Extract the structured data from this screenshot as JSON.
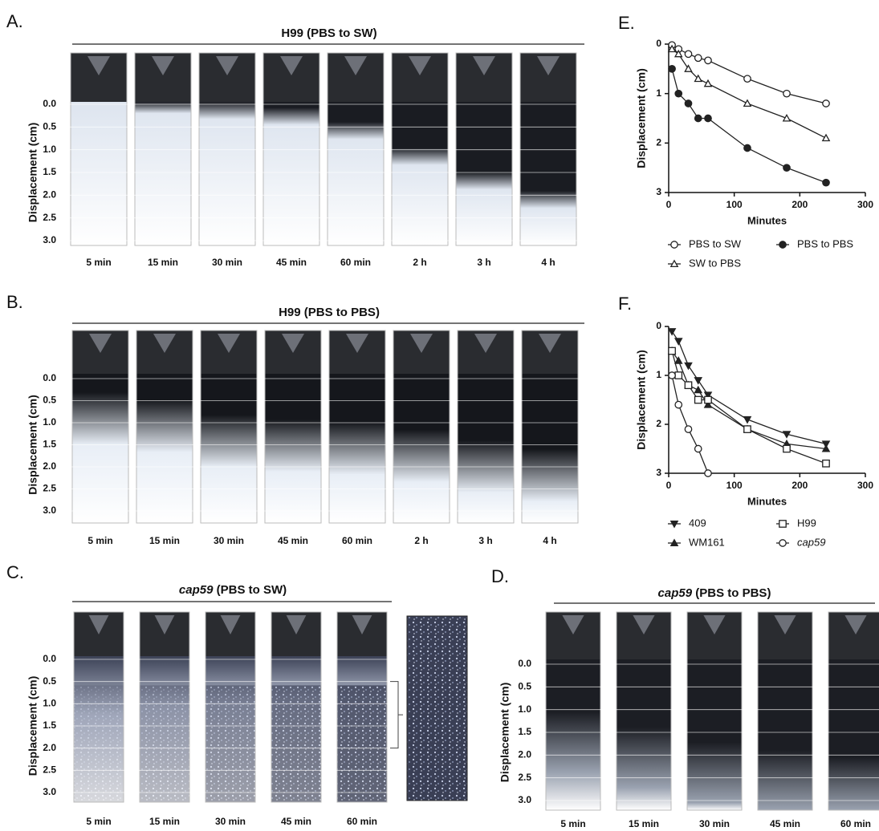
{
  "panels": [
    {
      "label": "A.",
      "strain": "H99",
      "condition": "(PBS to SW)",
      "strain_italic": false,
      "y_label": "Displacement (cm)",
      "ticks": [
        "0.0",
        "0.5",
        "1.0",
        "1.5",
        "2.0",
        "2.5",
        "3.0"
      ],
      "times": [
        "5 min",
        "15 min",
        "30 min",
        "45 min",
        "60 min",
        "2 h",
        "3 h",
        "4 h"
      ]
    },
    {
      "label": "B.",
      "strain": "H99",
      "condition": "(PBS to PBS)",
      "strain_italic": false,
      "y_label": "Displacement (cm)",
      "ticks": [
        "0.0",
        "0.5",
        "1.0",
        "1.5",
        "2.0",
        "2.5",
        "3.0"
      ],
      "times": [
        "5 min",
        "15 min",
        "30 min",
        "45 min",
        "60 min",
        "2 h",
        "3 h",
        "4 h"
      ]
    },
    {
      "label": "C.",
      "strain": "cap59",
      "condition": "(PBS to SW)",
      "strain_italic": true,
      "y_label": "Displacement (cm)",
      "ticks": [
        "0.0",
        "0.5",
        "1.0",
        "1.5",
        "2.0",
        "2.5",
        "3.0"
      ],
      "times": [
        "5 min",
        "15 min",
        "30 min",
        "45 min",
        "60 min"
      ]
    },
    {
      "label": "D.",
      "strain": "cap59",
      "condition": "(PBS to PBS)",
      "strain_italic": true,
      "y_label": "Displacement (cm)",
      "ticks": [
        "0.0",
        "0.5",
        "1.0",
        "1.5",
        "2.0",
        "2.5",
        "3.0"
      ],
      "times": [
        "5 min",
        "15 min",
        "30 min",
        "45 min",
        "60 min"
      ]
    }
  ],
  "chart_data": [
    {
      "type": "line",
      "label": "E.",
      "x_label": "Minutes",
      "y_label": "Displacement (cm)",
      "xlim": [
        0,
        300
      ],
      "xticks": [
        0,
        100,
        200,
        300
      ],
      "ylim": [
        0,
        3
      ],
      "yticks": [
        0,
        1,
        2,
        3
      ],
      "y_inverted": true,
      "series": [
        {
          "name": "PBS to SW",
          "marker": "circle-open",
          "color": "#222222",
          "x": [
            5,
            15,
            30,
            45,
            60,
            120,
            180,
            240
          ],
          "values": [
            0.02,
            0.1,
            0.2,
            0.28,
            0.33,
            0.7,
            1.0,
            1.2
          ]
        },
        {
          "name": "SW to PBS",
          "marker": "triangle-open",
          "color": "#222222",
          "x": [
            5,
            15,
            30,
            45,
            60,
            120,
            180,
            240
          ],
          "values": [
            0.1,
            0.2,
            0.5,
            0.7,
            0.8,
            1.2,
            1.5,
            1.9
          ]
        },
        {
          "name": "PBS to PBS",
          "marker": "circle-filled",
          "color": "#222222",
          "x": [
            5,
            15,
            30,
            45,
            60,
            120,
            180,
            240
          ],
          "values": [
            0.5,
            1.0,
            1.2,
            1.5,
            1.5,
            2.1,
            2.5,
            2.8
          ]
        }
      ]
    },
    {
      "type": "line",
      "label": "F.",
      "x_label": "Minutes",
      "y_label": "Displacement (cm)",
      "xlim": [
        0,
        300
      ],
      "xticks": [
        0,
        100,
        200,
        300
      ],
      "ylim": [
        0,
        3
      ],
      "yticks": [
        0,
        1,
        2,
        3
      ],
      "y_inverted": true,
      "series": [
        {
          "name": "409",
          "marker": "triangle-down-filled",
          "color": "#222222",
          "italic": false,
          "x": [
            5,
            15,
            30,
            45,
            60,
            120,
            180,
            240
          ],
          "values": [
            0.1,
            0.3,
            0.8,
            1.1,
            1.4,
            1.9,
            2.2,
            2.4
          ]
        },
        {
          "name": "WM161",
          "marker": "triangle-filled",
          "color": "#222222",
          "italic": false,
          "x": [
            5,
            15,
            30,
            45,
            60,
            120,
            180,
            240
          ],
          "values": [
            0.5,
            0.7,
            1.2,
            1.3,
            1.6,
            2.1,
            2.4,
            2.5
          ]
        },
        {
          "name": "H99",
          "marker": "square-open",
          "color": "#222222",
          "italic": false,
          "x": [
            5,
            15,
            30,
            45,
            60,
            120,
            180,
            240
          ],
          "values": [
            0.5,
            1.0,
            1.2,
            1.5,
            1.5,
            2.1,
            2.5,
            2.8
          ]
        },
        {
          "name": "cap59",
          "marker": "circle-open",
          "color": "#222222",
          "italic": true,
          "x": [
            5,
            15,
            30,
            45,
            60
          ],
          "values": [
            1.0,
            1.6,
            2.1,
            2.5,
            3.0
          ]
        }
      ]
    }
  ]
}
